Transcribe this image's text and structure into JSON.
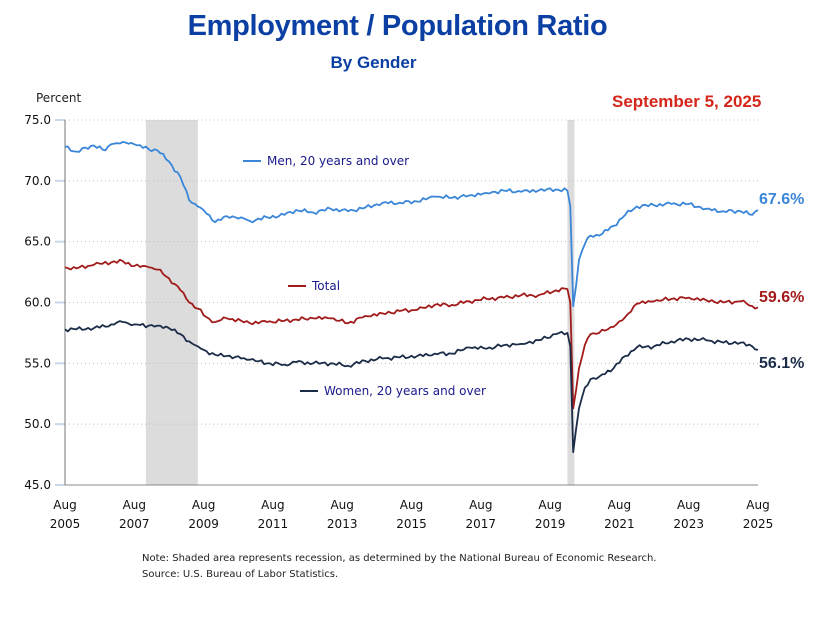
{
  "chart_data": {
    "type": "line",
    "title": "Employment / Population Ratio",
    "subtitle": "By Gender",
    "date_label": "September 5, 2025",
    "ylabel": "Percent",
    "xlabel": "",
    "ylim": [
      45.0,
      75.0
    ],
    "yticks": [
      "75.0",
      "70.0",
      "65.0",
      "60.0",
      "55.0",
      "50.0",
      "45.0"
    ],
    "xticks": [
      {
        "month": "Aug",
        "year": "2005"
      },
      {
        "month": "Aug",
        "year": "2007"
      },
      {
        "month": "Aug",
        "year": "2009"
      },
      {
        "month": "Aug",
        "year": "2011"
      },
      {
        "month": "Aug",
        "year": "2013"
      },
      {
        "month": "Aug",
        "year": "2015"
      },
      {
        "month": "Aug",
        "year": "2017"
      },
      {
        "month": "Aug",
        "year": "2019"
      },
      {
        "month": "Aug",
        "year": "2021"
      },
      {
        "month": "Aug",
        "year": "2023"
      },
      {
        "month": "Aug",
        "year": "2025"
      }
    ],
    "x_range": [
      "2005-08",
      "2025-08"
    ],
    "grid": "horizontal dotted",
    "recessions": [
      {
        "start": "2007-12",
        "end": "2009-06"
      },
      {
        "start": "2020-02",
        "end": "2020-04"
      }
    ],
    "series": [
      {
        "name": "Men, 20 years and over",
        "color": "#3a86d8",
        "end_label": "67.6%",
        "anchors": [
          [
            "2005-08",
            72.8
          ],
          [
            "2005-12",
            72.4
          ],
          [
            "2006-06",
            72.9
          ],
          [
            "2006-10",
            72.5
          ],
          [
            "2006-12",
            73.0
          ],
          [
            "2007-04",
            73.2
          ],
          [
            "2007-08",
            73.0
          ],
          [
            "2008-01",
            72.6
          ],
          [
            "2008-04",
            72.5
          ],
          [
            "2008-08",
            71.6
          ],
          [
            "2008-12",
            70.3
          ],
          [
            "2009-03",
            68.4
          ],
          [
            "2009-06",
            67.9
          ],
          [
            "2009-09",
            67.3
          ],
          [
            "2009-12",
            66.6
          ],
          [
            "2010-04",
            67.1
          ],
          [
            "2010-09",
            67.0
          ],
          [
            "2010-12",
            66.7
          ],
          [
            "2011-06",
            67.0
          ],
          [
            "2011-12",
            67.2
          ],
          [
            "2012-04",
            67.6
          ],
          [
            "2012-10",
            67.4
          ],
          [
            "2013-04",
            67.7
          ],
          [
            "2013-10",
            67.5
          ],
          [
            "2014-04",
            67.8
          ],
          [
            "2014-10",
            68.2
          ],
          [
            "2015-04",
            68.2
          ],
          [
            "2015-10",
            68.3
          ],
          [
            "2016-04",
            68.7
          ],
          [
            "2016-10",
            68.6
          ],
          [
            "2017-04",
            68.8
          ],
          [
            "2017-10",
            69.0
          ],
          [
            "2018-04",
            69.2
          ],
          [
            "2018-10",
            69.1
          ],
          [
            "2019-04",
            69.2
          ],
          [
            "2019-10",
            69.3
          ],
          [
            "2020-02",
            69.2
          ],
          [
            "2020-03",
            67.9
          ],
          [
            "2020-04",
            59.7
          ],
          [
            "2020-05",
            61.4
          ],
          [
            "2020-06",
            63.5
          ],
          [
            "2020-08",
            64.8
          ],
          [
            "2020-10",
            65.5
          ],
          [
            "2021-01",
            65.5
          ],
          [
            "2021-06",
            66.3
          ],
          [
            "2021-10",
            67.2
          ],
          [
            "2022-02",
            67.9
          ],
          [
            "2022-08",
            68.0
          ],
          [
            "2023-02",
            68.1
          ],
          [
            "2023-08",
            68.1
          ],
          [
            "2024-02",
            67.7
          ],
          [
            "2024-08",
            67.5
          ],
          [
            "2025-02",
            67.5
          ],
          [
            "2025-06",
            67.2
          ],
          [
            "2025-08",
            67.6
          ]
        ]
      },
      {
        "name": "Total",
        "color": "#a11b1b",
        "end_label": "59.6%",
        "anchors": [
          [
            "2005-08",
            62.9
          ],
          [
            "2005-12",
            62.8
          ],
          [
            "2006-06",
            63.1
          ],
          [
            "2006-12",
            63.3
          ],
          [
            "2007-04",
            63.4
          ],
          [
            "2007-08",
            63.0
          ],
          [
            "2008-01",
            62.9
          ],
          [
            "2008-04",
            62.7
          ],
          [
            "2008-08",
            62.0
          ],
          [
            "2008-12",
            61.0
          ],
          [
            "2009-03",
            60.0
          ],
          [
            "2009-06",
            59.5
          ],
          [
            "2009-09",
            58.8
          ],
          [
            "2009-12",
            58.4
          ],
          [
            "2010-04",
            58.7
          ],
          [
            "2010-09",
            58.5
          ],
          [
            "2010-12",
            58.3
          ],
          [
            "2011-06",
            58.4
          ],
          [
            "2011-12",
            58.5
          ],
          [
            "2012-04",
            58.6
          ],
          [
            "2012-10",
            58.7
          ],
          [
            "2013-04",
            58.7
          ],
          [
            "2013-10",
            58.3
          ],
          [
            "2014-04",
            58.9
          ],
          [
            "2014-10",
            59.1
          ],
          [
            "2015-04",
            59.3
          ],
          [
            "2015-10",
            59.4
          ],
          [
            "2016-04",
            59.8
          ],
          [
            "2016-10",
            59.8
          ],
          [
            "2017-04",
            60.1
          ],
          [
            "2017-10",
            60.3
          ],
          [
            "2018-04",
            60.4
          ],
          [
            "2018-10",
            60.6
          ],
          [
            "2019-04",
            60.6
          ],
          [
            "2019-10",
            61.0
          ],
          [
            "2020-02",
            61.1
          ],
          [
            "2020-03",
            60.0
          ],
          [
            "2020-04",
            51.3
          ],
          [
            "2020-05",
            52.8
          ],
          [
            "2020-06",
            54.6
          ],
          [
            "2020-08",
            56.5
          ],
          [
            "2020-10",
            57.4
          ],
          [
            "2021-01",
            57.5
          ],
          [
            "2021-06",
            58.0
          ],
          [
            "2021-10",
            58.8
          ],
          [
            "2022-02",
            59.9
          ],
          [
            "2022-08",
            60.1
          ],
          [
            "2023-02",
            60.3
          ],
          [
            "2023-08",
            60.4
          ],
          [
            "2024-02",
            60.2
          ],
          [
            "2024-08",
            60.0
          ],
          [
            "2025-02",
            60.1
          ],
          [
            "2025-06",
            59.7
          ],
          [
            "2025-08",
            59.6
          ]
        ]
      },
      {
        "name": "Women, 20 years and over",
        "color": "#1b2c48",
        "end_label": "56.1%",
        "anchors": [
          [
            "2005-08",
            57.8
          ],
          [
            "2005-12",
            57.8
          ],
          [
            "2006-06",
            57.9
          ],
          [
            "2006-12",
            58.2
          ],
          [
            "2007-04",
            58.4
          ],
          [
            "2007-08",
            58.2
          ],
          [
            "2008-01",
            58.1
          ],
          [
            "2008-04",
            58.1
          ],
          [
            "2008-08",
            57.9
          ],
          [
            "2008-12",
            57.4
          ],
          [
            "2009-03",
            56.8
          ],
          [
            "2009-06",
            56.4
          ],
          [
            "2009-09",
            56.0
          ],
          [
            "2009-12",
            55.7
          ],
          [
            "2010-04",
            55.6
          ],
          [
            "2010-09",
            55.4
          ],
          [
            "2010-12",
            55.3
          ],
          [
            "2011-06",
            55.0
          ],
          [
            "2011-12",
            54.9
          ],
          [
            "2012-04",
            55.1
          ],
          [
            "2012-10",
            55.0
          ],
          [
            "2013-04",
            55.0
          ],
          [
            "2013-10",
            54.8
          ],
          [
            "2014-04",
            55.2
          ],
          [
            "2014-10",
            55.4
          ],
          [
            "2015-04",
            55.5
          ],
          [
            "2015-10",
            55.6
          ],
          [
            "2016-04",
            55.8
          ],
          [
            "2016-10",
            55.8
          ],
          [
            "2017-04",
            56.3
          ],
          [
            "2017-10",
            56.2
          ],
          [
            "2018-04",
            56.5
          ],
          [
            "2018-10",
            56.6
          ],
          [
            "2019-04",
            56.9
          ],
          [
            "2019-10",
            57.4
          ],
          [
            "2020-02",
            57.5
          ],
          [
            "2020-03",
            56.4
          ],
          [
            "2020-04",
            47.7
          ],
          [
            "2020-05",
            49.6
          ],
          [
            "2020-06",
            51.3
          ],
          [
            "2020-08",
            53.0
          ],
          [
            "2020-10",
            53.7
          ],
          [
            "2021-01",
            53.9
          ],
          [
            "2021-06",
            54.6
          ],
          [
            "2021-10",
            55.6
          ],
          [
            "2022-02",
            56.3
          ],
          [
            "2022-08",
            56.4
          ],
          [
            "2023-02",
            56.8
          ],
          [
            "2023-08",
            57.0
          ],
          [
            "2024-02",
            56.9
          ],
          [
            "2024-08",
            56.7
          ],
          [
            "2025-02",
            56.7
          ],
          [
            "2025-06",
            56.4
          ],
          [
            "2025-08",
            56.1
          ]
        ]
      }
    ]
  },
  "notes": {
    "note": "Note: Shaded area represents recession, as determined by the National Bureau of Economic Research.",
    "source": "Source: U.S. Bureau of Labor Statistics."
  }
}
